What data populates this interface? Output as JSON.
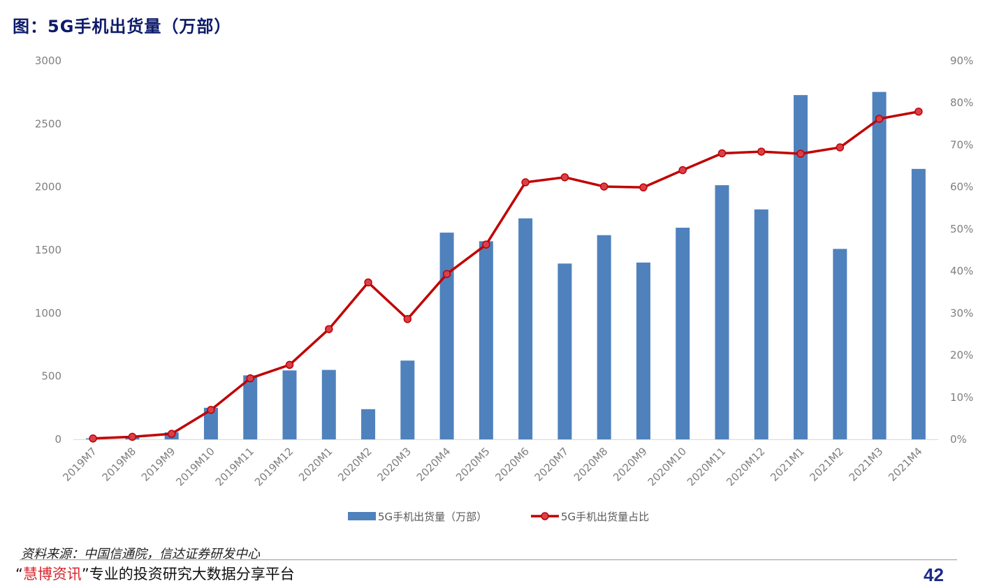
{
  "title": "图：5G手机出货量（万部）",
  "source": "资料来源：中国信通院，信达证券研发中心",
  "footer": {
    "quote_open": "“",
    "brand": "慧博资讯",
    "quote_close": "”",
    "slogan": "专业的投资研究大数据分享平台",
    "page_number": "42"
  },
  "colors": {
    "bar": "#4f81bd",
    "line": "#c00000",
    "marker_fill": "#d9414a"
  },
  "chart_data": {
    "type": "bar",
    "title": "图：5G手机出货量（万部）",
    "categories": [
      "2019M7",
      "2019M8",
      "2019M9",
      "2019M10",
      "2019M11",
      "2019M12",
      "2020M1",
      "2020M2",
      "2020M3",
      "2020M4",
      "2020M5",
      "2020M6",
      "2020M7",
      "2020M8",
      "2020M9",
      "2020M10",
      "2020M11",
      "2020M12",
      "2021M1",
      "2021M2",
      "2021M3",
      "2021M4"
    ],
    "series": [
      {
        "name": "5G手机出货量（万部）",
        "type": "bar",
        "axis": "left",
        "values": [
          8,
          20,
          55,
          250,
          507,
          546,
          550,
          239,
          624,
          1638,
          1570,
          1751,
          1393,
          1618,
          1401,
          1677,
          2014,
          1822,
          2728,
          1509,
          2753,
          2143
        ]
      },
      {
        "name": "5G手机出货量占比",
        "type": "line",
        "axis": "right",
        "values": [
          0.2,
          0.6,
          1.3,
          7.0,
          14.5,
          17.7,
          26.2,
          37.3,
          28.6,
          39.3,
          46.3,
          61.1,
          62.3,
          60.1,
          59.9,
          64.0,
          68.0,
          68.4,
          67.9,
          69.4,
          76.2,
          77.9
        ]
      }
    ],
    "y_left": {
      "range": [
        0,
        3000
      ],
      "ticks": [
        "0",
        "500",
        "1000",
        "1500",
        "2000",
        "2500",
        "3000"
      ]
    },
    "y_right": {
      "range": [
        0,
        90
      ],
      "unit": "%",
      "ticks": [
        "0%",
        "10%",
        "20%",
        "30%",
        "40%",
        "50%",
        "60%",
        "70%",
        "80%",
        "90%"
      ]
    },
    "grid": false,
    "legend_position": "bottom"
  }
}
